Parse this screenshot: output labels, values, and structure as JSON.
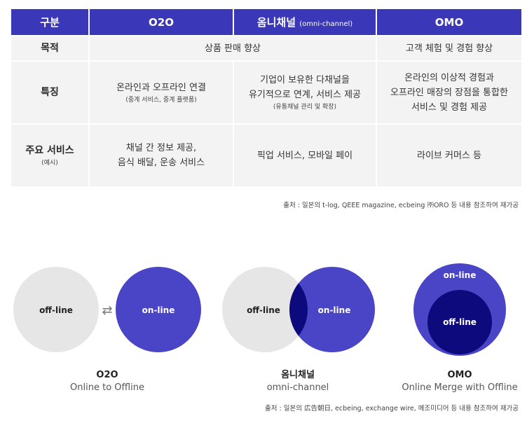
{
  "table": {
    "header": {
      "category": "구분",
      "o2o": "O2O",
      "omni": "옴니채널",
      "omni_sub": "(omni-channel)",
      "omo": "OMO"
    },
    "rows": {
      "purpose": {
        "label": "목적",
        "merged_o2o_omni": "상품 판매 향상",
        "omo": "고객 체험 및 경험 향상"
      },
      "feature": {
        "label": "특징",
        "o2o_main": "온라인과 오프라인 연결",
        "o2o_note": "(중계 서비스, 중계 플랫폼)",
        "omni_line1": "기업이 보유한 다채널을",
        "omni_line2": "유기적으로 연계, 서비스 제공",
        "omni_note": "(유통채널 관리 및 확장)",
        "omo_line1": "온라인의 이상적 경험과",
        "omo_line2": "오프라인 매장의 장점을 통합한",
        "omo_line3": "서비스 및 경험 제공"
      },
      "services": {
        "label": "주요 서비스",
        "label_note": "(예시)",
        "o2o_line1": "채널 간 정보 제공,",
        "o2o_line2": "음식 배달, 운송 서비스",
        "omni": "픽업 서비스, 모바일 페이",
        "omo": "라이브 커머스 등"
      }
    }
  },
  "source_top": "출처 : 일본의 t-log, QEEE magazine, ecbeing ㈜ORO 등 내용 참조하여 재가공",
  "diagrams": {
    "o2o": {
      "offline_label": "off-line",
      "online_label": "on-line",
      "arrow_symbol": "⇄",
      "title": "O2O",
      "subtitle": "Online to Offline"
    },
    "omni": {
      "offline_label": "off-line",
      "online_label": "on-line",
      "title": "옴니채널",
      "subtitle": "omni-channel"
    },
    "omo": {
      "online_label": "on-line",
      "offline_label": "off-line",
      "title": "OMO",
      "subtitle": "Online Merge with Offline"
    }
  },
  "source_bottom": "출처 : 일본의 広告朝日, ecbeing, exchange wire, 메조미디어 등 내용 참조하여 재가공",
  "colors": {
    "header_bg": "#3a37b8",
    "cell_bg": "#f3f3f3",
    "offline_gray": "#e6e6e6",
    "online_purple": "#4a44c6",
    "overlap_navy": "#0c0a7c"
  }
}
